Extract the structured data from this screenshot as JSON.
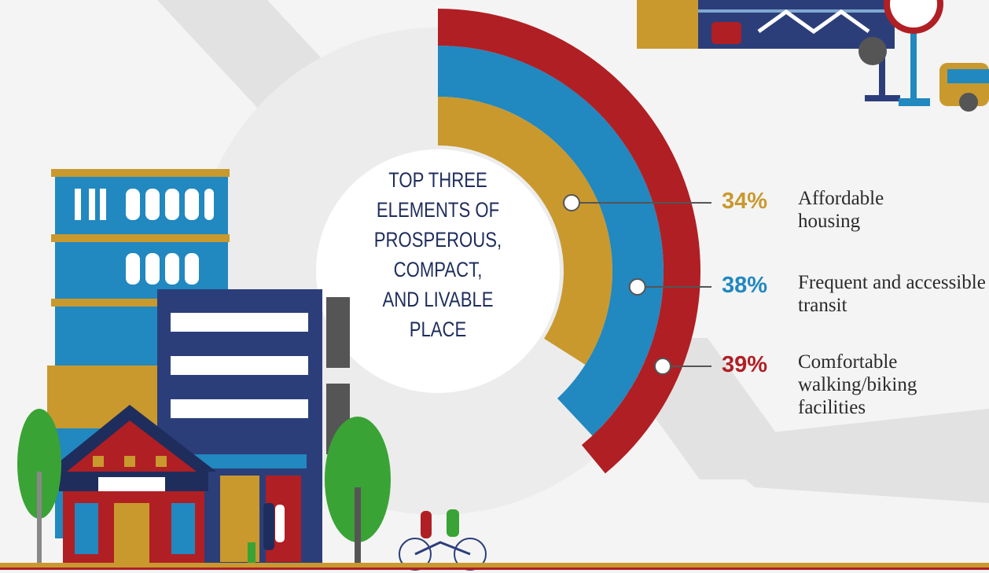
{
  "chart_data": {
    "type": "radialbar",
    "title": "TOP THREE ELEMENTS OF PROSPEROUS, COMPACT, AND LIVABLE PLACE",
    "categories": [
      "Affordable housing",
      "Frequent and accessible transit",
      "Comfortable walking/biking facilities"
    ],
    "values": [
      34,
      38,
      39
    ],
    "value_labels": [
      "34%",
      "38%",
      "39%"
    ],
    "colors": [
      "#c9992e",
      "#2188c0",
      "#b01f24"
    ],
    "ylim": [
      0,
      100
    ]
  }
}
